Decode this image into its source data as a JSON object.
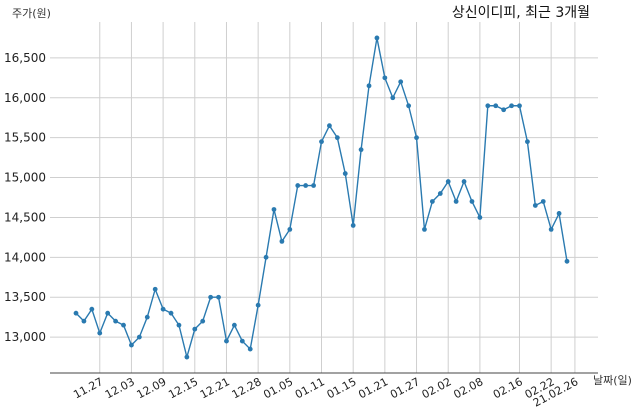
{
  "chart_data": {
    "type": "line",
    "title": "상신이디피, 최근 3개월",
    "ylabel": "주가(원)",
    "xlabel": "날짜(일)",
    "ylim": [
      12550,
      16950
    ],
    "yticks": [
      13000,
      13500,
      14000,
      14500,
      15000,
      15500,
      16000,
      16500
    ],
    "ytick_labels": [
      "13,000",
      "13,500",
      "14,000",
      "14,500",
      "15,000",
      "15,500",
      "16,000",
      "16,500"
    ],
    "xtick_labels": [
      "11.27",
      "12.03",
      "12.09",
      "12.15",
      "12.21",
      "12.28",
      "01.05",
      "01.11",
      "01.15",
      "01.21",
      "01.27",
      "02.02",
      "02.08",
      "02.16",
      "02.22",
      "21.02.26"
    ],
    "xtick_index": [
      3,
      7,
      11,
      15,
      19,
      23,
      27,
      31,
      35,
      39,
      43,
      47,
      51,
      56,
      60,
      63
    ],
    "grid": true,
    "line_color": "#2a7ab0",
    "series": [
      {
        "values": [
          13300,
          13200,
          13350,
          13050,
          13300,
          13200,
          13150,
          12900,
          13000,
          13250,
          13600,
          13350,
          13300,
          13150,
          12750,
          13100,
          13200,
          13500,
          13500,
          12950,
          13150,
          12950,
          12850,
          13400,
          14000,
          14600,
          14200,
          14350,
          14900,
          14900,
          14900,
          15450,
          15650,
          15500,
          15050,
          14400,
          15350,
          16150,
          16750,
          16250,
          16000,
          16200,
          15900,
          15500,
          14350,
          14700,
          14800,
          14950,
          14700,
          14950,
          14700,
          14500,
          15900,
          15900,
          15850,
          15900,
          15900,
          15450,
          14650,
          14700,
          14350,
          14550,
          13950
        ]
      }
    ]
  }
}
